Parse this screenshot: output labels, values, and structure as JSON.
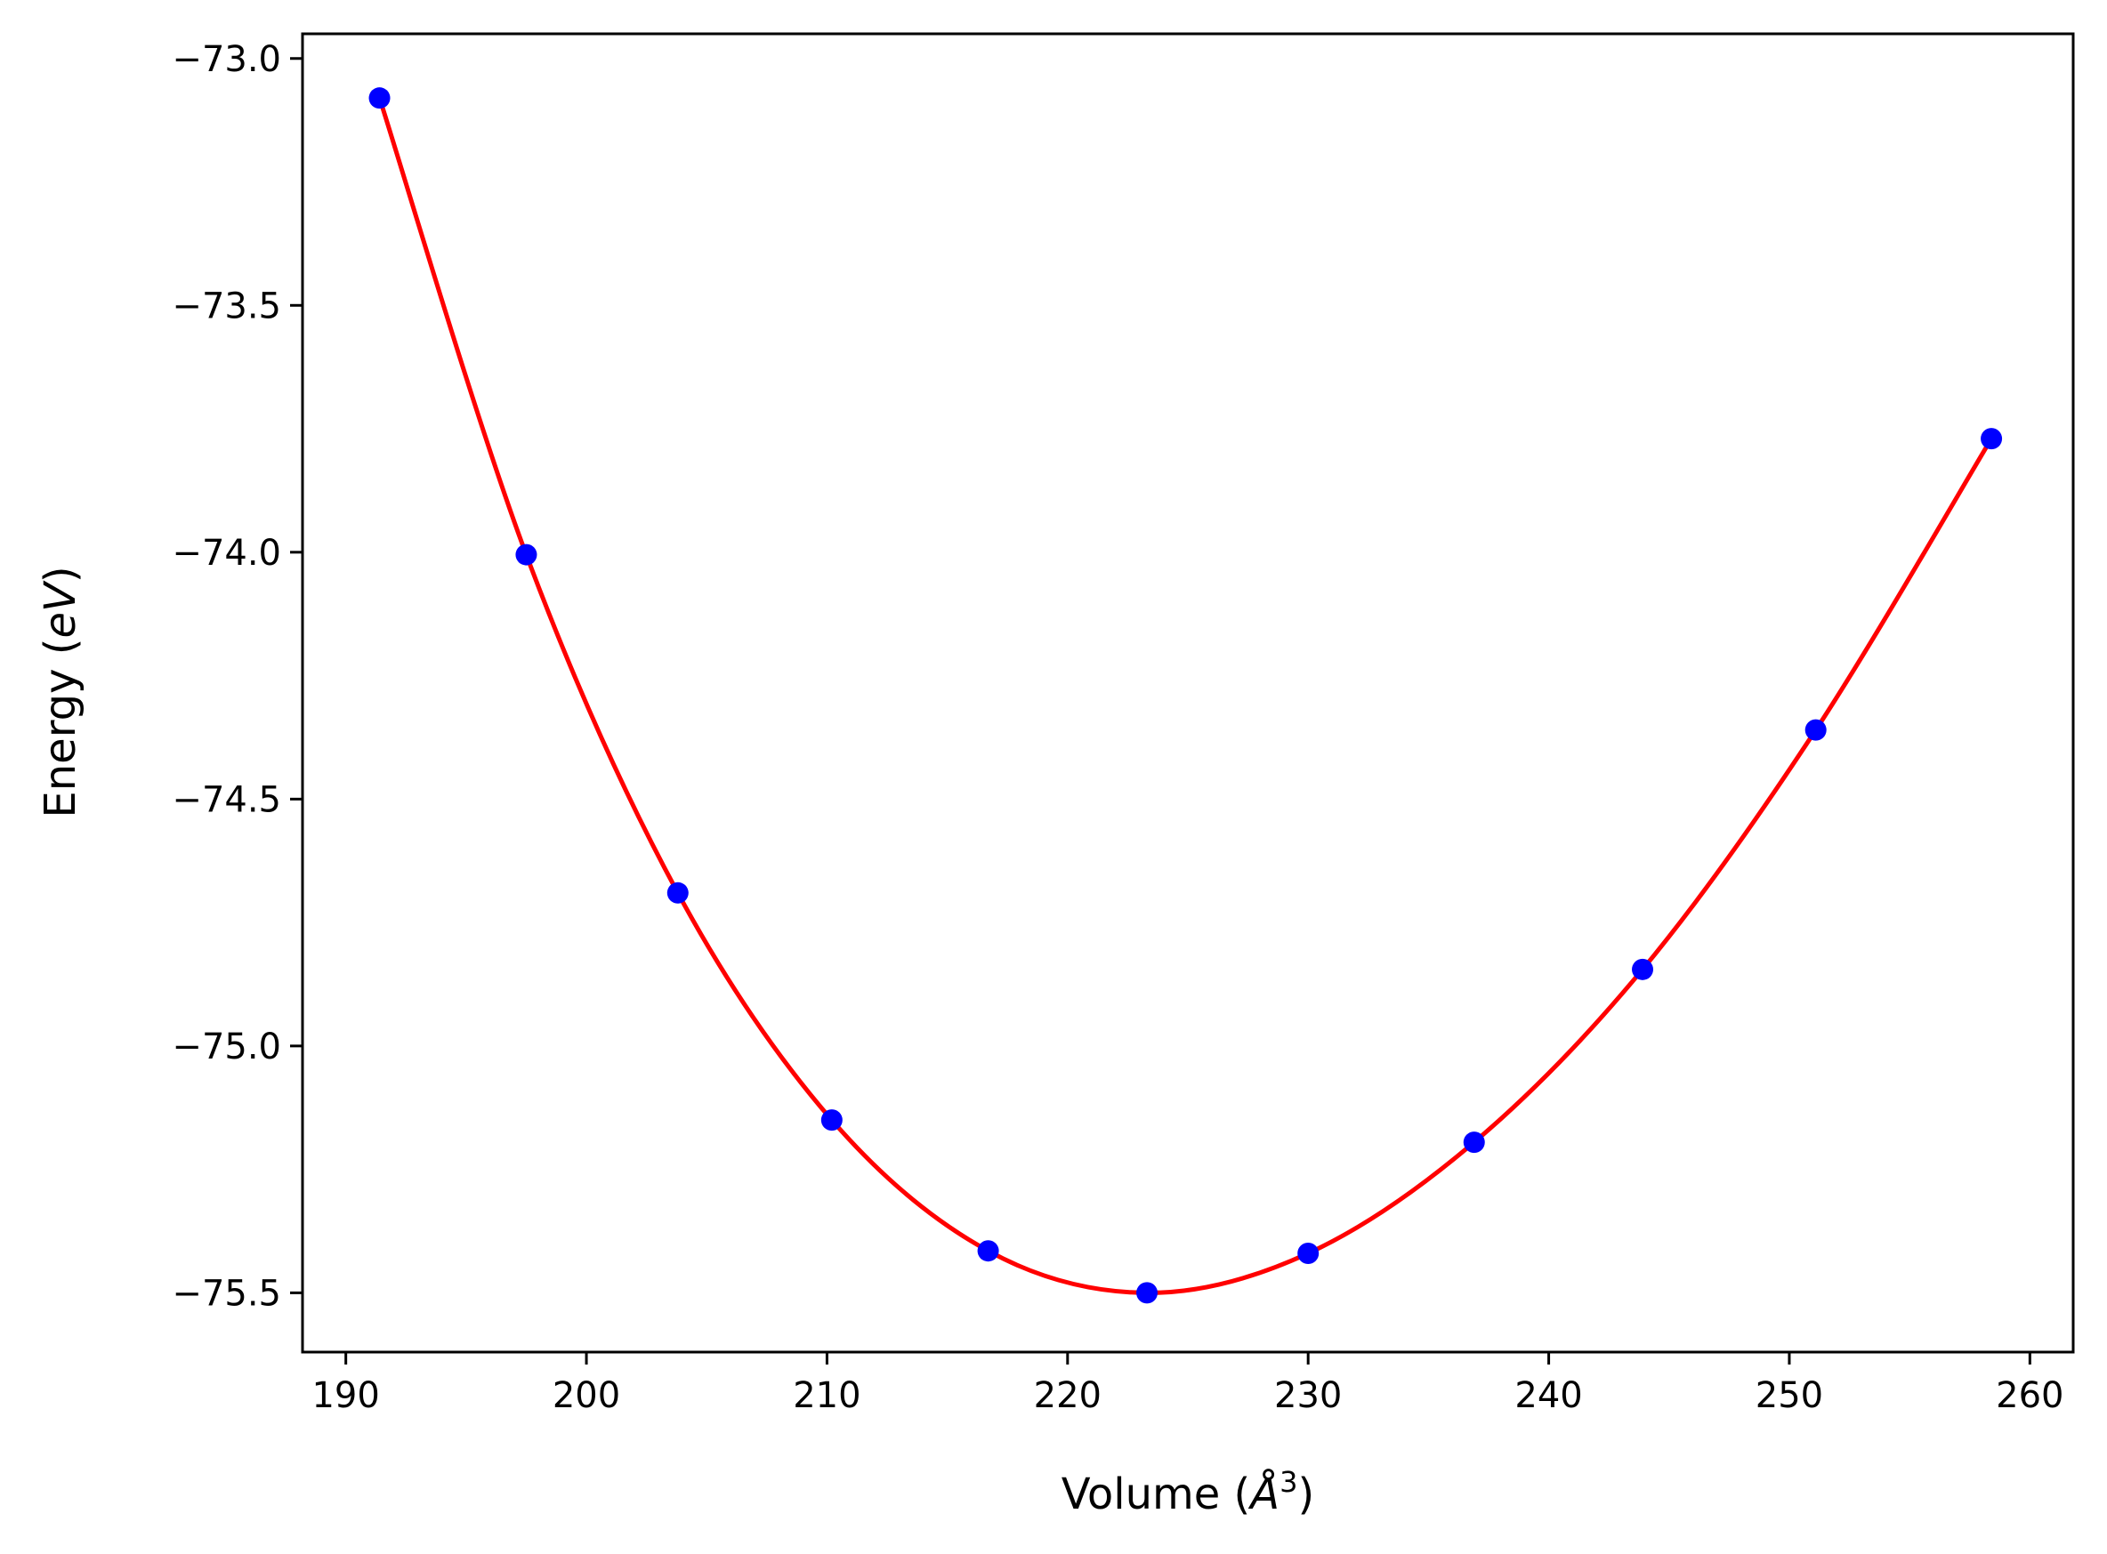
{
  "chart_data": {
    "type": "scatter",
    "title": "",
    "xlabel": "Volume (Å³)",
    "ylabel": "Energy (eV)",
    "xlabel_parts": {
      "prefix": "Volume (",
      "symbol": "Å",
      "power": "3",
      "suffix": ")"
    },
    "ylabel_parts": {
      "prefix": "Energy (",
      "unit": "eV",
      "suffix": ")"
    },
    "xlim": [
      188.2,
      261.8
    ],
    "ylim": [
      -75.62,
      -72.95
    ],
    "xticks": [
      190,
      200,
      210,
      220,
      230,
      240,
      250,
      260
    ],
    "xtick_labels": [
      "190",
      "200",
      "210",
      "220",
      "230",
      "240",
      "250",
      "260"
    ],
    "yticks": [
      -73.0,
      -73.5,
      -74.0,
      -74.5,
      -75.0,
      -75.5
    ],
    "ytick_labels": [
      "−73.0",
      "−73.5",
      "−74.0",
      "−74.5",
      "−75.0",
      "−75.5"
    ],
    "grid": false,
    "legend": "none",
    "series": [
      {
        "kind": "points",
        "color": "#0000ff",
        "x": [
          191.4,
          197.5,
          203.8,
          210.2,
          216.7,
          223.3,
          230.0,
          236.9,
          243.9,
          251.1,
          258.4
        ],
        "y": [
          -73.08,
          -74.005,
          -74.69,
          -75.15,
          -75.415,
          -75.5,
          -75.42,
          -75.195,
          -74.845,
          -74.36,
          -73.77
        ]
      },
      {
        "kind": "fit-line",
        "color": "#ff0000",
        "x": [
          191.4,
          197.5,
          203.8,
          210.2,
          216.7,
          223.3,
          230.0,
          236.9,
          243.9,
          251.1,
          258.4
        ],
        "y": [
          -73.08,
          -74.005,
          -74.69,
          -75.15,
          -75.415,
          -75.5,
          -75.42,
          -75.195,
          -74.845,
          -74.36,
          -73.77
        ]
      }
    ]
  }
}
